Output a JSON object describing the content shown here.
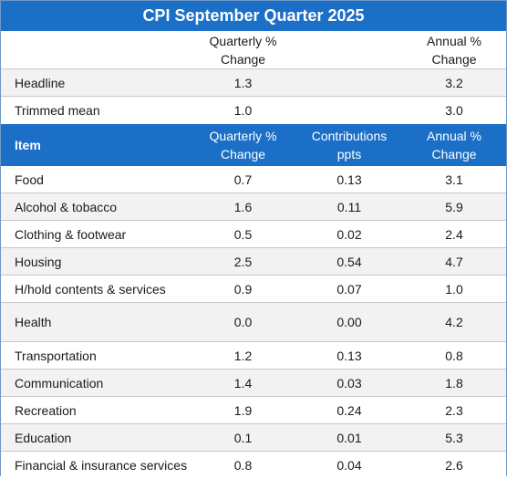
{
  "title": "CPI September Quarter 2025",
  "summary_header": {
    "quarterly": [
      "Quarterly %",
      "Change"
    ],
    "annual": [
      "Annual %",
      "Change"
    ]
  },
  "summary_rows": [
    {
      "label": "Headline",
      "quarterly": "1.3",
      "annual": "3.2"
    },
    {
      "label": "Trimmed mean",
      "quarterly": "1.0",
      "annual": "3.0"
    }
  ],
  "item_header": {
    "item": "Item",
    "quarterly": [
      "Quarterly %",
      "Change"
    ],
    "contributions": [
      "Contributions",
      "ppts"
    ],
    "annual": [
      "Annual %",
      "Change"
    ]
  },
  "items": [
    {
      "label": "Food",
      "quarterly": "0.7",
      "contributions": "0.13",
      "annual": "3.1"
    },
    {
      "label": "Alcohol & tobacco",
      "quarterly": "1.6",
      "contributions": "0.11",
      "annual": "5.9"
    },
    {
      "label": "Clothing & footwear",
      "quarterly": "0.5",
      "contributions": "0.02",
      "annual": "2.4"
    },
    {
      "label": "Housing",
      "quarterly": "2.5",
      "contributions": "0.54",
      "annual": "4.7"
    },
    {
      "label": "H/hold contents & services",
      "quarterly": "0.9",
      "contributions": "0.07",
      "annual": "1.0"
    },
    {
      "label": "Health",
      "quarterly": "0.0",
      "contributions": "0.00",
      "annual": "4.2"
    },
    {
      "label": "Transportation",
      "quarterly": "1.2",
      "contributions": "0.13",
      "annual": "0.8"
    },
    {
      "label": "Communication",
      "quarterly": "1.4",
      "contributions": "0.03",
      "annual": "1.8"
    },
    {
      "label": "Recreation",
      "quarterly": "1.9",
      "contributions": "0.24",
      "annual": "2.3"
    },
    {
      "label": "Education",
      "quarterly": "0.1",
      "contributions": "0.01",
      "annual": "5.3"
    },
    {
      "label": "Financial & insurance services",
      "quarterly": "0.8",
      "contributions": "0.04",
      "annual": "2.6"
    }
  ],
  "colors": {
    "header_blue": "#1b6fc6",
    "stripe": "#f2f2f2",
    "border": "#c7c7c7"
  }
}
